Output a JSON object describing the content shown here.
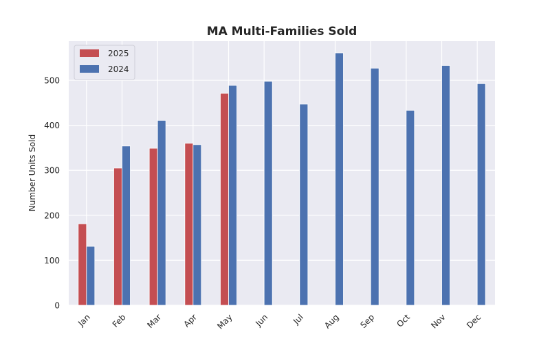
{
  "chart_data": {
    "type": "bar",
    "title": "MA Multi-Families Sold",
    "xlabel": "",
    "ylabel": "Number Units Sold",
    "categories": [
      "Jan",
      "Feb",
      "Mar",
      "Apr",
      "May",
      "Jun",
      "Jul",
      "Aug",
      "Sep",
      "Oct",
      "Nov",
      "Dec"
    ],
    "series": [
      {
        "name": "2025",
        "color": "#c44e52",
        "values": [
          181,
          305,
          349,
          360,
          471,
          null,
          null,
          null,
          null,
          null,
          null,
          null
        ]
      },
      {
        "name": "2024",
        "color": "#4c72b0",
        "values": [
          131,
          354,
          411,
          357,
          489,
          498,
          447,
          561,
          527,
          433,
          533,
          493
        ]
      }
    ],
    "ylim": [
      0,
      587
    ],
    "yticks": [
      0,
      100,
      200,
      300,
      400,
      500
    ],
    "grid": true,
    "background": "#eaeaf2",
    "legend_position": "top-left"
  }
}
